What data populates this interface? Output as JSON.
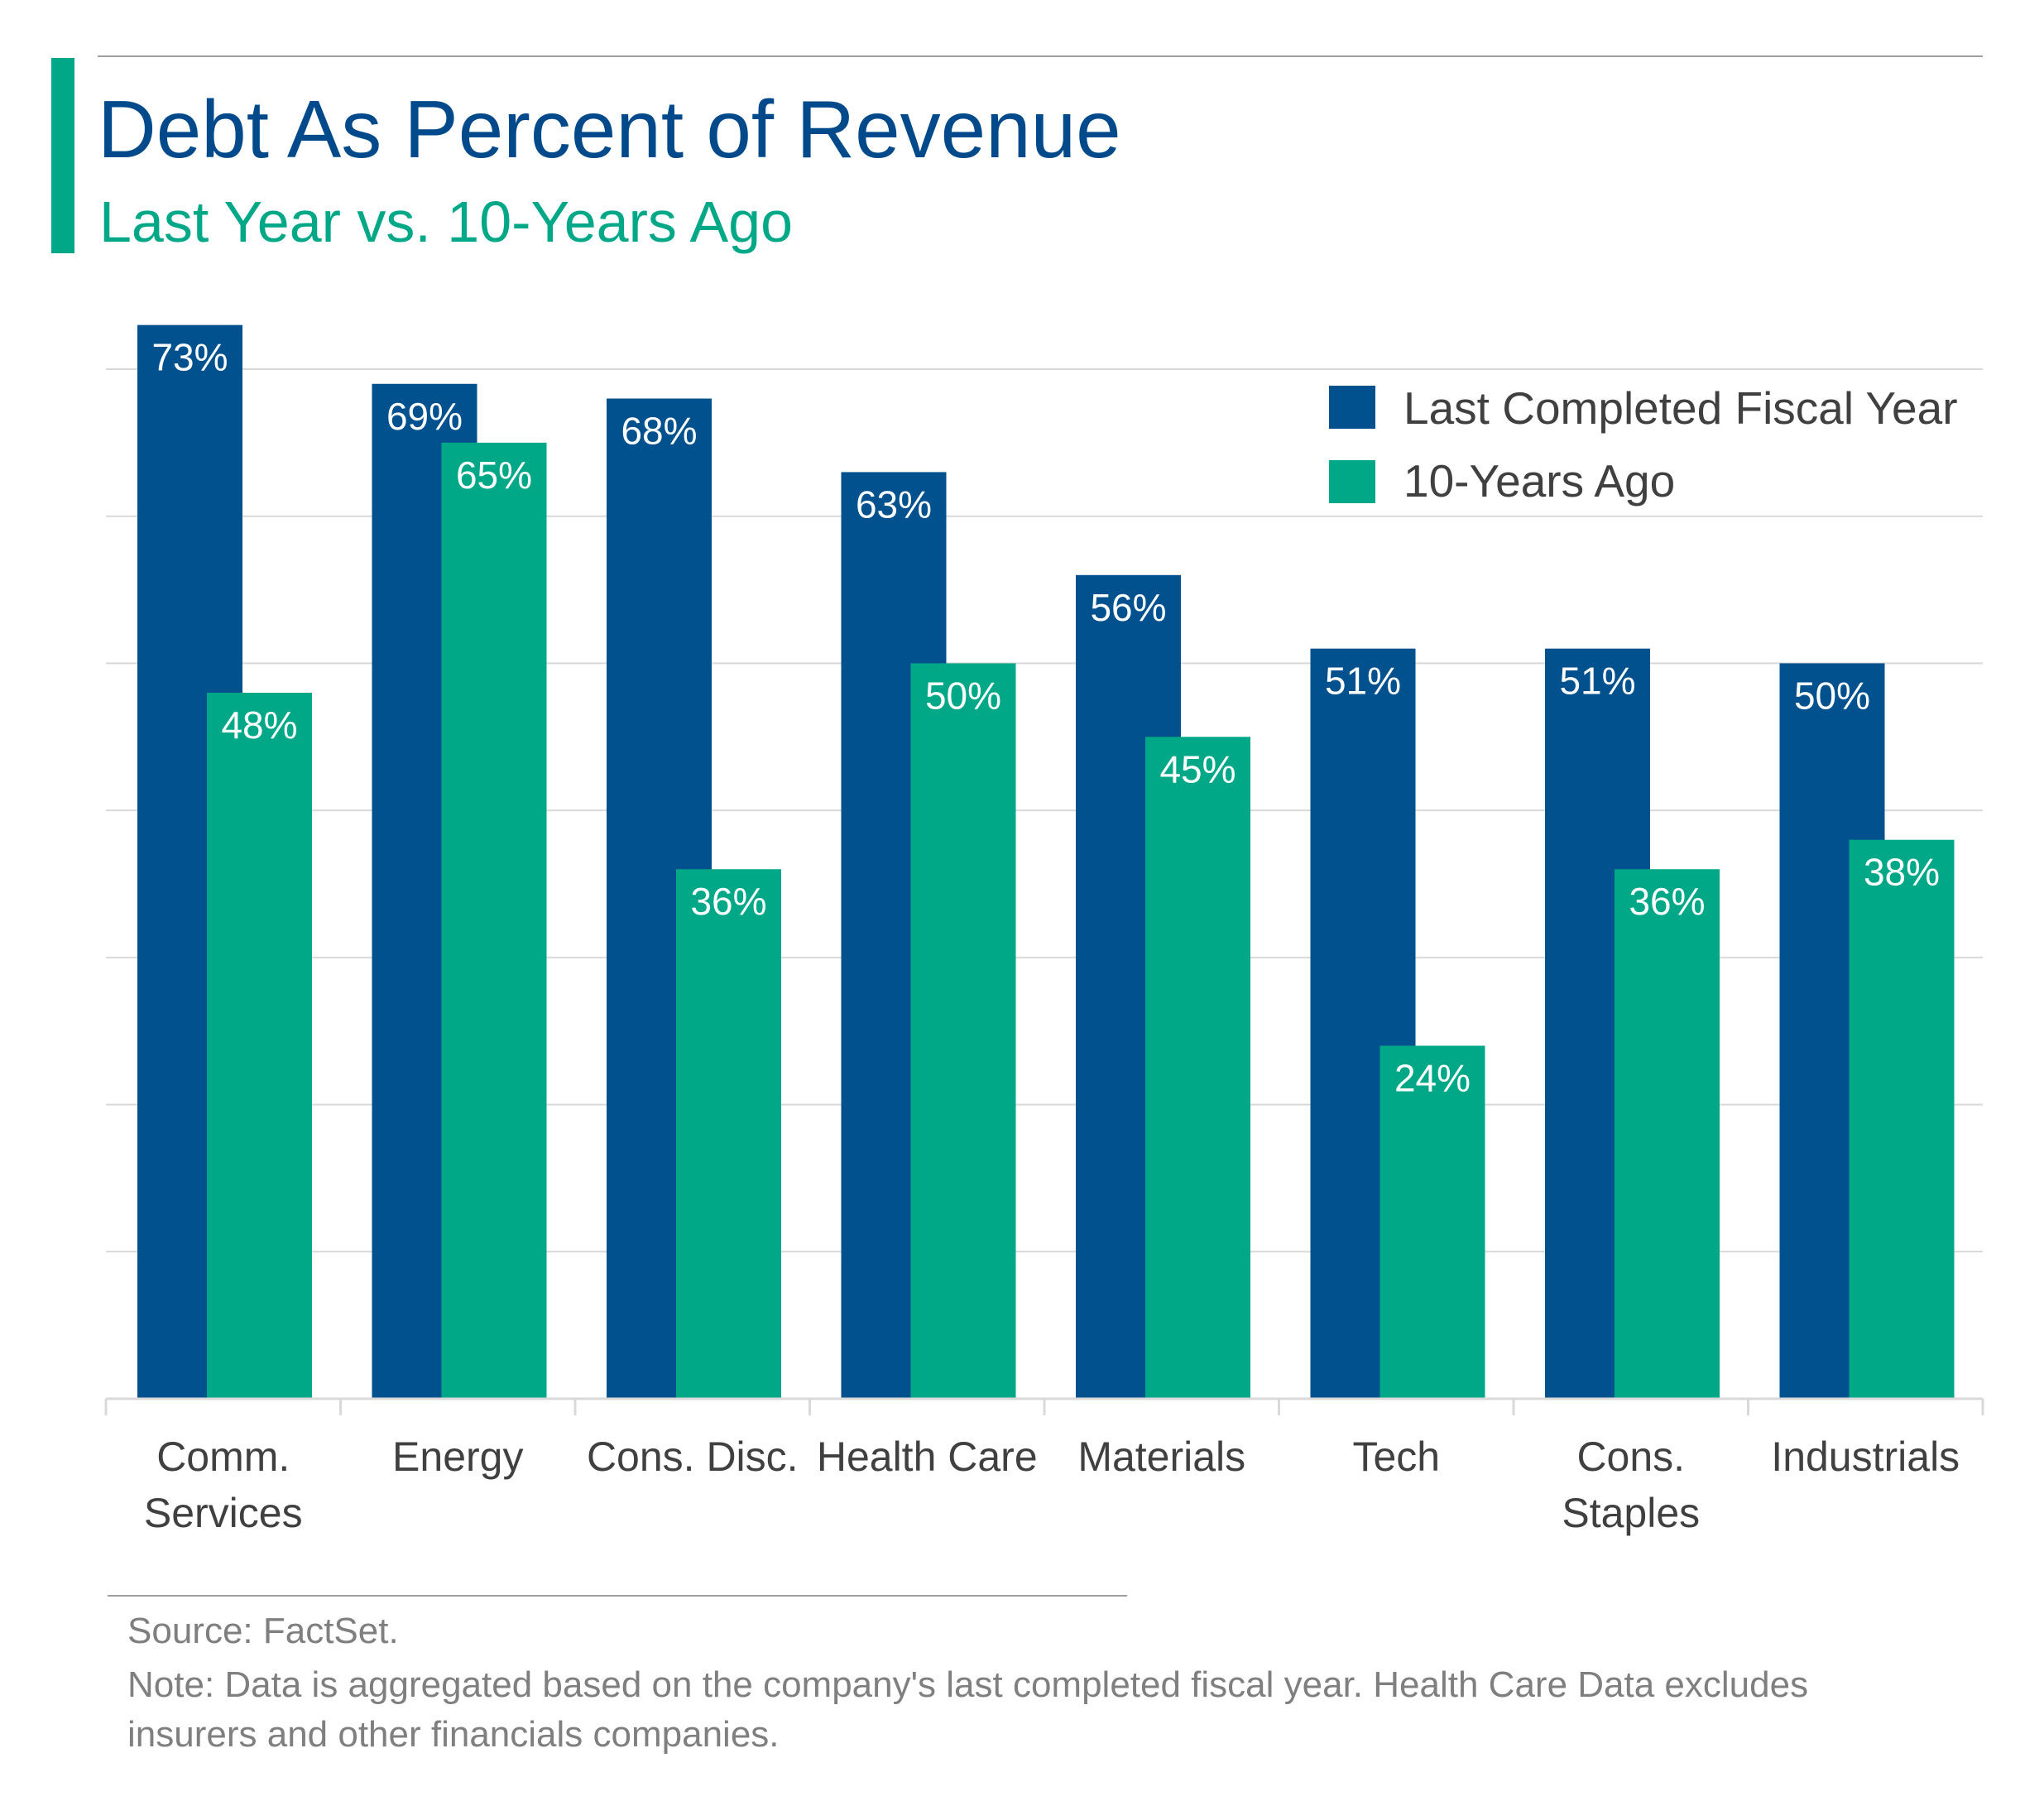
{
  "header": {
    "title": "Debt As Percent of Revenue",
    "subtitle": "Last Year vs. 10-Years Ago"
  },
  "colors": {
    "accent_bar": "#00a887",
    "title": "#004a8c",
    "subtitle": "#00a887",
    "series_last": "#00518e",
    "series_ten": "#00a887",
    "gridline": "#d9d9d9",
    "footer_text": "#7f7f7f",
    "rule": "#9e9e9e"
  },
  "chart_data": {
    "type": "bar",
    "categories": [
      [
        "Comm.",
        "Services"
      ],
      [
        "Energy"
      ],
      [
        "Cons. Disc."
      ],
      [
        "Health Care"
      ],
      [
        "Materials"
      ],
      [
        "Tech"
      ],
      [
        "Cons.",
        "Staples"
      ],
      [
        "Industrials"
      ]
    ],
    "series": [
      {
        "name": "Last Completed Fiscal Year",
        "values": [
          73,
          69,
          68,
          63,
          56,
          51,
          51,
          50
        ],
        "labels": [
          "73%",
          "69%",
          "68%",
          "63%",
          "56%",
          "51%",
          "51%",
          "50%"
        ]
      },
      {
        "name": "10-Years Ago",
        "values": [
          48,
          65,
          36,
          50,
          45,
          24,
          36,
          38
        ],
        "labels": [
          "48%",
          "65%",
          "36%",
          "50%",
          "45%",
          "24%",
          "36%",
          "38%"
        ]
      }
    ],
    "ylim": [
      0,
      70
    ],
    "grid": true,
    "legend_position": "top-right"
  },
  "footer": {
    "source": "Source: FactSet.",
    "note_line1": "Note: Data is aggregated based on the company's last completed fiscal year. Health Care Data excludes",
    "note_line2": "insurers and other financials companies."
  }
}
